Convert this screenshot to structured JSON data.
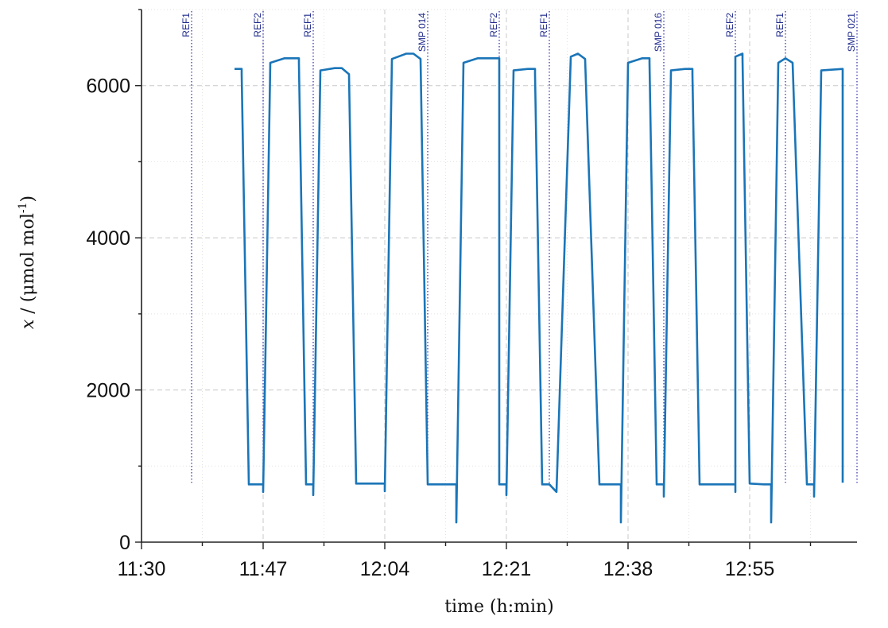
{
  "chart_data": {
    "type": "line",
    "xlabel": "time (h:min)",
    "ylabel": {
      "prefix": "x",
      "middle": " / (μmol mol",
      "sup": "-1",
      "suffix": ")"
    },
    "xlim": [
      "11:30",
      "13:10"
    ],
    "ylim": [
      0,
      7000
    ],
    "x_ticks": [
      "11:30",
      "11:47",
      "12:04",
      "12:21",
      "12:38",
      "12:55"
    ],
    "y_ticks": [
      0,
      2000,
      4000,
      6000
    ],
    "grid": true,
    "series_color": "#1a75b8",
    "marker_color": "#3a3ab0",
    "markers": [
      {
        "time": "11:37",
        "label": "REF1"
      },
      {
        "time": "11:47",
        "label": "REF2"
      },
      {
        "time": "11:54",
        "label": "REF1"
      },
      {
        "time": "12:10",
        "label": "SMP 014"
      },
      {
        "time": "12:20",
        "label": "REF2"
      },
      {
        "time": "12:27",
        "label": "REF1"
      },
      {
        "time": "12:43",
        "label": "SMP 016"
      },
      {
        "time": "12:53",
        "label": "REF2"
      },
      {
        "time": "13:00",
        "label": "REF1"
      },
      {
        "time": "13:10",
        "label": "SMP 021"
      }
    ],
    "series": [
      {
        "x": [
          "11:43",
          "11:44",
          "11:44",
          "11:45",
          "11:46",
          "11:47",
          "11:47",
          "11:48",
          "11:50",
          "11:52",
          "11:52",
          "11:53",
          "11:54",
          "11:54",
          "11:55",
          "11:57",
          "11:58",
          "11:59",
          "12:00",
          "12:01",
          "12:03",
          "12:04",
          "12:04",
          "12:05",
          "12:07",
          "12:08",
          "12:09",
          "12:10",
          "12:10",
          "12:11",
          "12:13",
          "12:14",
          "12:14",
          "12:15",
          "12:17",
          "12:19",
          "12:20",
          "12:20",
          "12:20",
          "12:21",
          "12:21",
          "12:21",
          "12:22",
          "12:24",
          "12:25",
          "12:25",
          "12:26",
          "12:27",
          "12:27",
          "12:28",
          "12:30",
          "12:31",
          "12:31",
          "12:32",
          "12:34",
          "12:36",
          "12:37",
          "12:37",
          "12:38",
          "12:40",
          "12:41",
          "12:41",
          "12:42",
          "12:43",
          "12:43",
          "12:44",
          "12:46",
          "12:47",
          "12:47",
          "12:48",
          "12:50",
          "12:52",
          "12:53",
          "12:53",
          "12:53",
          "12:54",
          "12:54",
          "12:54",
          "12:55",
          "12:57",
          "12:58",
          "12:58",
          "12:59",
          "13:00",
          "13:00",
          "13:01",
          "13:03",
          "13:04",
          "13:04",
          "13:05",
          "13:08",
          "13:08",
          "13:08"
        ],
        "y": [
          6220,
          6220,
          6150,
          760,
          760,
          760,
          660,
          6300,
          6360,
          6360,
          6300,
          760,
          760,
          620,
          6200,
          6230,
          6230,
          6150,
          770,
          770,
          770,
          770,
          670,
          6350,
          6420,
          6420,
          6350,
          770,
          760,
          760,
          760,
          760,
          260,
          6300,
          6360,
          6360,
          6360,
          6300,
          760,
          760,
          760,
          620,
          6200,
          6220,
          6220,
          6150,
          760,
          760,
          760,
          660,
          6380,
          6420,
          6420,
          6350,
          760,
          760,
          760,
          260,
          6300,
          6360,
          6360,
          6300,
          760,
          760,
          600,
          6200,
          6220,
          6220,
          6150,
          760,
          760,
          760,
          760,
          660,
          6380,
          6420,
          6420,
          6350,
          770,
          760,
          760,
          260,
          6300,
          6360,
          6360,
          6300,
          760,
          760,
          600,
          6200,
          6220,
          6220,
          780
        ]
      }
    ]
  }
}
